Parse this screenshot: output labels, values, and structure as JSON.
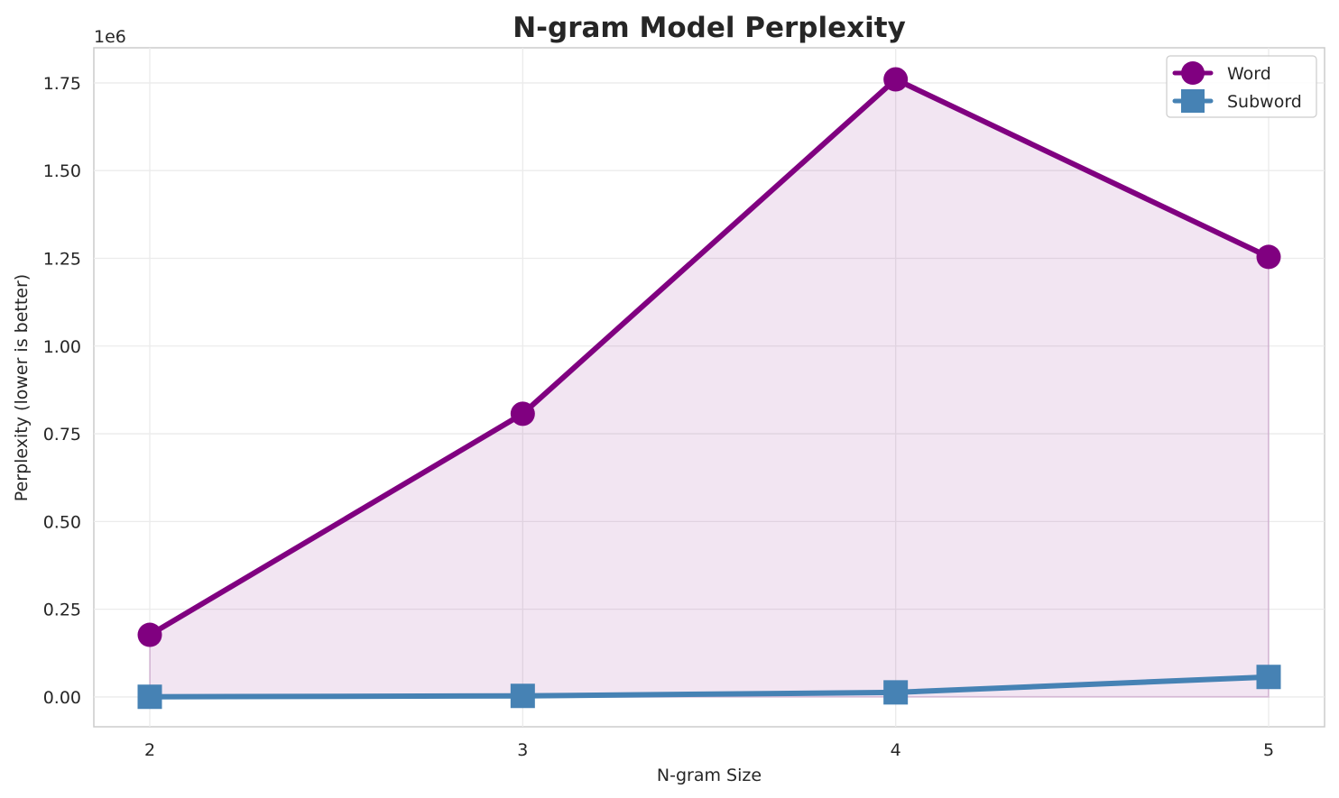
{
  "chart_data": {
    "type": "line",
    "title": "N-gram Model Perplexity",
    "xlabel": "N-gram Size",
    "ylabel": "Perplexity (lower is better)",
    "y_scale_label": "1e6",
    "categories": [
      2,
      3,
      4,
      5
    ],
    "x_tick_labels": [
      "2",
      "3",
      "4",
      "5"
    ],
    "y_ticks": [
      0.0,
      0.25,
      0.5,
      0.75,
      1.0,
      1.25,
      1.5,
      1.75
    ],
    "y_tick_labels": [
      "0.00",
      "0.25",
      "0.50",
      "0.75",
      "1.00",
      "1.25",
      "1.50",
      "1.75"
    ],
    "ylim": [
      -0.085,
      1.85
    ],
    "xlim": [
      1.85,
      5.15
    ],
    "grid": true,
    "legend_position": "upper right",
    "series": [
      {
        "name": "Word",
        "values": [
          177000,
          807000,
          1760000,
          1254000
        ],
        "color": "#800080",
        "marker": "circle",
        "fill_under": true,
        "fill_color": "#800080",
        "fill_opacity": 0.1
      },
      {
        "name": "Subword",
        "values": [
          500,
          3000,
          13000,
          57000
        ],
        "color": "#4682b4",
        "marker": "square",
        "fill_under": false
      }
    ]
  },
  "legend": {
    "items": [
      {
        "label": "Word"
      },
      {
        "label": "Subword"
      }
    ]
  }
}
